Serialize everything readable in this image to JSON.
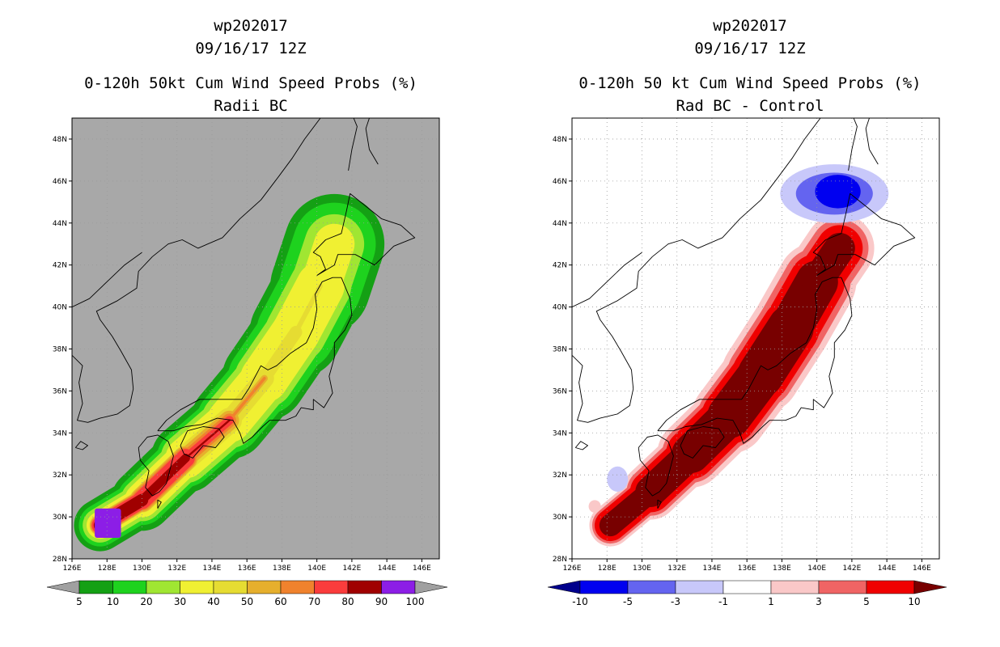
{
  "chart_data": [
    {
      "type": "contour-map",
      "title": [
        "wp202017",
        "09/16/17 12Z",
        "0-120h 50kt Cum Wind Speed Probs (%)",
        "Radii BC"
      ],
      "xlabel": "",
      "ylabel": "",
      "xlim": [
        126,
        147
      ],
      "ylim": [
        28,
        49
      ],
      "x_ticks": [
        "126E",
        "128E",
        "130E",
        "132E",
        "134E",
        "136E",
        "138E",
        "140E",
        "142E",
        "144E",
        "146E"
      ],
      "y_ticks": [
        "28N",
        "30N",
        "32N",
        "34N",
        "36N",
        "38N",
        "40N",
        "42N",
        "44N",
        "46N",
        "48N"
      ],
      "background": "#a8a8a8",
      "colorbar": {
        "labels": [
          "5",
          "10",
          "20",
          "30",
          "40",
          "50",
          "60",
          "70",
          "80",
          "90",
          "100"
        ],
        "colors": [
          "#a0a0a0",
          "#14a014",
          "#1ed21e",
          "#a0e632",
          "#f0f032",
          "#e6dc32",
          "#e6af2d",
          "#f0822d",
          "#fa3c3c",
          "#a00000",
          "#8c1ee6",
          "#a0a0a0"
        ]
      },
      "swath": {
        "track": [
          [
            127.6,
            29.6
          ],
          [
            130.0,
            30.8
          ],
          [
            132.5,
            32.8
          ],
          [
            135.0,
            34.6
          ],
          [
            137.0,
            36.6
          ],
          [
            138.8,
            38.8
          ],
          [
            140.2,
            41.0
          ],
          [
            141.0,
            43.0
          ]
        ],
        "bands": [
          {
            "level": 5,
            "color": "#14a014",
            "widths": [
              1.2,
              1.5,
              1.7,
              1.9,
              2.1,
              2.3,
              2.5,
              2.7
            ]
          },
          {
            "level": 10,
            "color": "#1ed21e",
            "widths": [
              1.0,
              1.2,
              1.4,
              1.6,
              1.8,
              2.0,
              2.1,
              2.2
            ]
          },
          {
            "level": 20,
            "color": "#a0e632",
            "widths": [
              0.8,
              1.0,
              1.2,
              1.4,
              1.5,
              1.6,
              1.6,
              1.5
            ]
          },
          {
            "level": 30,
            "color": "#f0f032",
            "widths": [
              0.6,
              0.8,
              1.0,
              1.1,
              1.2,
              1.3,
              1.2,
              0.9
            ]
          },
          {
            "level": 40,
            "color": "#e6dc32",
            "widths": [
              0.5,
              0.6,
              0.7,
              0.6,
              0.4,
              0.25,
              0.0,
              0.0
            ]
          },
          {
            "level": 50,
            "color": "#e6af2d",
            "widths": [
              0.45,
              0.6,
              0.65,
              0.35,
              0.0,
              0,
              0,
              0
            ]
          },
          {
            "level": 60,
            "color": "#f0822d",
            "widths": [
              0.4,
              0.55,
              0.55,
              0.15,
              0,
              0,
              0,
              0
            ]
          },
          {
            "level": 70,
            "color": "#fa3c3c",
            "widths": [
              0.35,
              0.5,
              0.45,
              0.0,
              0,
              0,
              0,
              0
            ]
          },
          {
            "level": 80,
            "color": "#a00000",
            "widths": [
              0.3,
              0.35,
              0.1,
              0,
              0,
              0,
              0,
              0
            ]
          }
        ],
        "peak_patch": {
          "level": 90,
          "color": "#8c1ee6",
          "lon": [
            127.3,
            128.8
          ],
          "lat": [
            29.0,
            30.4
          ]
        }
      }
    },
    {
      "type": "contour-map",
      "title": [
        "wp202017",
        "09/16/17 12Z",
        "0-120h 50 kt Cum Wind Speed Probs (%)",
        "Rad BC - Control"
      ],
      "xlabel": "",
      "ylabel": "",
      "xlim": [
        126,
        147
      ],
      "ylim": [
        28,
        49
      ],
      "x_ticks": [
        "126E",
        "128E",
        "130E",
        "132E",
        "134E",
        "136E",
        "138E",
        "140E",
        "142E",
        "144E",
        "146E"
      ],
      "y_ticks": [
        "28N",
        "30N",
        "32N",
        "34N",
        "36N",
        "38N",
        "40N",
        "42N",
        "44N",
        "46N",
        "48N"
      ],
      "background": "#ffffff",
      "colorbar": {
        "labels": [
          "-10",
          "-5",
          "-3",
          "-1",
          "1",
          "3",
          "5",
          "10"
        ],
        "colors": [
          "#00008c",
          "#0000f0",
          "#6464f0",
          "#c8c8fa",
          "#ffffff",
          "#fac8c8",
          "#f06464",
          "#f00000",
          "#780000"
        ]
      },
      "swath": {
        "track": [
          [
            128.2,
            29.6
          ],
          [
            130.5,
            31.2
          ],
          [
            132.8,
            33.0
          ],
          [
            135.0,
            34.8
          ],
          [
            136.8,
            36.8
          ],
          [
            138.5,
            39.0
          ],
          [
            140.0,
            41.2
          ],
          [
            141.3,
            42.8
          ]
        ],
        "bands": [
          {
            "level": 1,
            "color": "#fac8c8",
            "widths": [
              0.9,
              1.3,
              1.6,
              1.9,
              2.0,
              2.1,
              2.0,
              1.6
            ]
          },
          {
            "level": 3,
            "color": "#f06464",
            "widths": [
              0.8,
              1.1,
              1.4,
              1.6,
              1.7,
              1.8,
              1.7,
              1.3
            ]
          },
          {
            "level": 5,
            "color": "#f00000",
            "widths": [
              0.7,
              0.95,
              1.2,
              1.4,
              1.5,
              1.5,
              1.4,
              1.0
            ]
          },
          {
            "level": 10,
            "color": "#780000",
            "widths": [
              0.45,
              0.7,
              0.9,
              1.1,
              1.2,
              1.2,
              1.0,
              0.6
            ]
          }
        ],
        "negative_blobs": [
          {
            "level": -1,
            "color": "#c8c8fa",
            "lon": 141.0,
            "lat": 45.4,
            "rx": 3.1,
            "ry": 1.4
          },
          {
            "level": -3,
            "color": "#6464f0",
            "lon": 141.0,
            "lat": 45.4,
            "rx": 2.2,
            "ry": 1.0
          },
          {
            "level": -5,
            "color": "#0000f0",
            "lon": 141.2,
            "lat": 45.5,
            "rx": 1.3,
            "ry": 0.8
          },
          {
            "level": -1,
            "color": "#c8c8fa",
            "lon": 128.6,
            "lat": 31.8,
            "rx": 0.6,
            "ry": 0.6
          }
        ],
        "positive_blob": {
          "level": 1,
          "color": "#fac8c8",
          "lon": 127.3,
          "lat": 30.5,
          "rx": 0.35,
          "ry": 0.3
        }
      }
    }
  ]
}
